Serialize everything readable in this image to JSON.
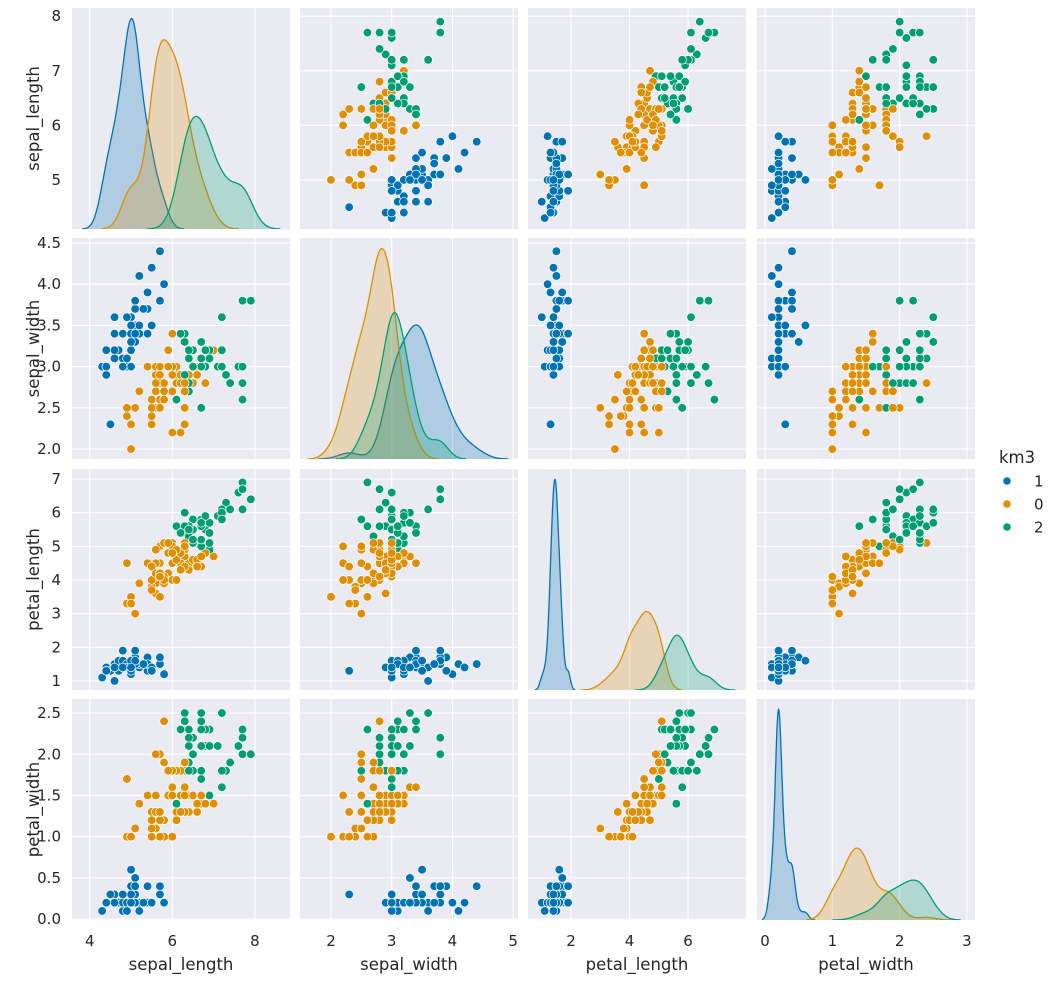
{
  "chart_data": {
    "type": "scatter",
    "subtype": "pairplot",
    "variables": [
      "sepal_length",
      "sepal_width",
      "petal_length",
      "petal_width"
    ],
    "axis_limits": {
      "sepal_length": {
        "x": [
          3.57,
          8.85
        ],
        "y": [
          4.1,
          8.15
        ]
      },
      "sepal_width": {
        "x": [
          1.49,
          5.08
        ],
        "y": [
          1.88,
          4.56
        ]
      },
      "petal_length": {
        "x": [
          0.53,
          7.98
        ],
        "y": [
          0.73,
          7.3
        ]
      },
      "petal_width": {
        "x": [
          -0.12,
          3.12
        ],
        "y": [
          -0.01,
          2.67
        ]
      }
    },
    "x_ticks": {
      "sepal_length": [
        "4",
        "6",
        "8"
      ],
      "sepal_width": [
        "2",
        "3",
        "4",
        "5"
      ],
      "petal_length": [
        "2",
        "4",
        "6"
      ],
      "petal_width": [
        "0",
        "1",
        "2",
        "3"
      ]
    },
    "y_ticks": {
      "sepal_length": [
        "5",
        "6",
        "7",
        "8"
      ],
      "sepal_width": [
        "2.0",
        "2.5",
        "3.0",
        "3.5",
        "4.0",
        "4.5"
      ],
      "petal_length": [
        "1",
        "2",
        "3",
        "4",
        "5",
        "6",
        "7"
      ],
      "petal_width": [
        "0.0",
        "0.5",
        "1.0",
        "1.5",
        "2.0",
        "2.5"
      ]
    },
    "diagonal": "kde",
    "grid": true,
    "background": "#eaeaf2",
    "legend": {
      "title": "km3",
      "placement": "right",
      "order": [
        "1",
        "0",
        "2"
      ]
    },
    "hue_colors": {
      "1": "#0173b2",
      "0": "#de8f05",
      "2": "#029e73"
    },
    "columns": [
      "sepal_length",
      "sepal_width",
      "petal_length",
      "petal_width",
      "km3"
    ],
    "rows": [
      [
        5.1,
        3.5,
        1.4,
        0.2,
        1
      ],
      [
        4.9,
        3.0,
        1.4,
        0.2,
        1
      ],
      [
        4.7,
        3.2,
        1.3,
        0.2,
        1
      ],
      [
        4.6,
        3.1,
        1.5,
        0.2,
        1
      ],
      [
        5.0,
        3.6,
        1.4,
        0.2,
        1
      ],
      [
        5.4,
        3.9,
        1.7,
        0.4,
        1
      ],
      [
        4.6,
        3.4,
        1.4,
        0.3,
        1
      ],
      [
        5.0,
        3.4,
        1.5,
        0.2,
        1
      ],
      [
        4.4,
        2.9,
        1.4,
        0.2,
        1
      ],
      [
        4.9,
        3.1,
        1.5,
        0.1,
        1
      ],
      [
        5.4,
        3.7,
        1.5,
        0.2,
        1
      ],
      [
        4.8,
        3.4,
        1.6,
        0.2,
        1
      ],
      [
        4.8,
        3.0,
        1.4,
        0.1,
        1
      ],
      [
        4.3,
        3.0,
        1.1,
        0.1,
        1
      ],
      [
        5.8,
        4.0,
        1.2,
        0.2,
        1
      ],
      [
        5.7,
        4.4,
        1.5,
        0.4,
        1
      ],
      [
        5.4,
        3.9,
        1.3,
        0.4,
        1
      ],
      [
        5.1,
        3.5,
        1.4,
        0.3,
        1
      ],
      [
        5.7,
        3.8,
        1.7,
        0.3,
        1
      ],
      [
        5.1,
        3.8,
        1.5,
        0.3,
        1
      ],
      [
        5.4,
        3.4,
        1.7,
        0.2,
        1
      ],
      [
        5.1,
        3.7,
        1.5,
        0.4,
        1
      ],
      [
        4.6,
        3.6,
        1.0,
        0.2,
        1
      ],
      [
        5.1,
        3.3,
        1.7,
        0.5,
        1
      ],
      [
        4.8,
        3.4,
        1.9,
        0.2,
        1
      ],
      [
        5.0,
        3.0,
        1.6,
        0.2,
        1
      ],
      [
        5.0,
        3.4,
        1.6,
        0.4,
        1
      ],
      [
        5.2,
        3.5,
        1.5,
        0.2,
        1
      ],
      [
        5.2,
        3.4,
        1.4,
        0.2,
        1
      ],
      [
        4.7,
        3.2,
        1.6,
        0.2,
        1
      ],
      [
        4.8,
        3.1,
        1.6,
        0.2,
        1
      ],
      [
        5.4,
        3.4,
        1.5,
        0.4,
        1
      ],
      [
        5.2,
        4.1,
        1.5,
        0.1,
        1
      ],
      [
        5.5,
        4.2,
        1.4,
        0.2,
        1
      ],
      [
        4.9,
        3.1,
        1.5,
        0.2,
        1
      ],
      [
        5.0,
        3.2,
        1.2,
        0.2,
        1
      ],
      [
        5.5,
        3.5,
        1.3,
        0.2,
        1
      ],
      [
        4.9,
        3.6,
        1.4,
        0.1,
        1
      ],
      [
        4.4,
        3.0,
        1.3,
        0.2,
        1
      ],
      [
        5.1,
        3.4,
        1.5,
        0.2,
        1
      ],
      [
        5.0,
        3.5,
        1.3,
        0.3,
        1
      ],
      [
        4.5,
        2.3,
        1.3,
        0.3,
        1
      ],
      [
        4.4,
        3.2,
        1.3,
        0.2,
        1
      ],
      [
        5.0,
        3.5,
        1.6,
        0.6,
        1
      ],
      [
        5.1,
        3.8,
        1.9,
        0.4,
        1
      ],
      [
        4.8,
        3.0,
        1.4,
        0.3,
        1
      ],
      [
        5.1,
        3.8,
        1.6,
        0.2,
        1
      ],
      [
        4.6,
        3.2,
        1.4,
        0.2,
        1
      ],
      [
        5.3,
        3.7,
        1.5,
        0.2,
        1
      ],
      [
        5.0,
        3.3,
        1.4,
        0.2,
        1
      ],
      [
        7.0,
        3.2,
        4.7,
        1.4,
        0
      ],
      [
        6.4,
        3.2,
        4.5,
        1.5,
        0
      ],
      [
        6.9,
        3.1,
        4.9,
        1.5,
        2
      ],
      [
        5.5,
        2.3,
        4.0,
        1.3,
        0
      ],
      [
        6.5,
        2.8,
        4.6,
        1.5,
        0
      ],
      [
        5.7,
        2.8,
        4.5,
        1.3,
        0
      ],
      [
        6.3,
        3.3,
        4.7,
        1.6,
        0
      ],
      [
        4.9,
        2.4,
        3.3,
        1.0,
        0
      ],
      [
        6.6,
        2.9,
        4.6,
        1.3,
        0
      ],
      [
        5.2,
        2.7,
        3.9,
        1.4,
        0
      ],
      [
        5.0,
        2.0,
        3.5,
        1.0,
        0
      ],
      [
        5.9,
        3.0,
        4.2,
        1.5,
        0
      ],
      [
        6.0,
        2.2,
        4.0,
        1.0,
        0
      ],
      [
        6.1,
        2.9,
        4.7,
        1.4,
        0
      ],
      [
        5.6,
        2.9,
        3.6,
        1.3,
        0
      ],
      [
        6.7,
        3.1,
        4.4,
        1.4,
        0
      ],
      [
        5.6,
        3.0,
        4.5,
        1.5,
        0
      ],
      [
        5.8,
        2.7,
        4.1,
        1.0,
        0
      ],
      [
        6.2,
        2.2,
        4.5,
        1.5,
        0
      ],
      [
        5.6,
        2.5,
        3.9,
        1.1,
        0
      ],
      [
        5.9,
        3.2,
        4.8,
        1.8,
        0
      ],
      [
        6.1,
        2.8,
        4.0,
        1.3,
        0
      ],
      [
        6.3,
        2.5,
        4.9,
        1.5,
        0
      ],
      [
        6.1,
        2.8,
        4.7,
        1.2,
        0
      ],
      [
        6.4,
        2.9,
        4.3,
        1.3,
        0
      ],
      [
        6.6,
        3.0,
        4.4,
        1.4,
        0
      ],
      [
        6.8,
        2.8,
        4.8,
        1.4,
        0
      ],
      [
        6.7,
        3.0,
        5.0,
        1.7,
        2
      ],
      [
        6.0,
        2.9,
        4.5,
        1.5,
        0
      ],
      [
        5.7,
        2.6,
        3.5,
        1.0,
        0
      ],
      [
        5.5,
        2.4,
        3.8,
        1.1,
        0
      ],
      [
        5.5,
        2.4,
        3.7,
        1.0,
        0
      ],
      [
        5.8,
        2.7,
        3.9,
        1.2,
        0
      ],
      [
        6.0,
        2.7,
        5.1,
        1.6,
        0
      ],
      [
        5.4,
        3.0,
        4.5,
        1.5,
        0
      ],
      [
        6.0,
        3.4,
        4.5,
        1.6,
        0
      ],
      [
        6.7,
        3.1,
        4.7,
        1.5,
        0
      ],
      [
        6.3,
        2.3,
        4.4,
        1.3,
        0
      ],
      [
        5.6,
        3.0,
        4.1,
        1.3,
        0
      ],
      [
        5.5,
        2.5,
        4.0,
        1.3,
        0
      ],
      [
        5.5,
        2.6,
        4.4,
        1.2,
        0
      ],
      [
        6.1,
        3.0,
        4.6,
        1.4,
        0
      ],
      [
        5.8,
        2.6,
        4.0,
        1.2,
        0
      ],
      [
        5.0,
        2.3,
        3.3,
        1.0,
        0
      ],
      [
        5.6,
        2.7,
        4.2,
        1.3,
        0
      ],
      [
        5.7,
        3.0,
        4.2,
        1.2,
        0
      ],
      [
        5.7,
        2.9,
        4.2,
        1.3,
        0
      ],
      [
        6.2,
        2.9,
        4.3,
        1.3,
        0
      ],
      [
        5.1,
        2.5,
        3.0,
        1.1,
        0
      ],
      [
        5.7,
        2.8,
        4.1,
        1.3,
        0
      ],
      [
        6.3,
        3.3,
        6.0,
        2.5,
        2
      ],
      [
        5.8,
        2.7,
        5.1,
        1.9,
        0
      ],
      [
        7.1,
        3.0,
        5.9,
        2.1,
        2
      ],
      [
        6.3,
        2.9,
        5.6,
        1.8,
        2
      ],
      [
        6.5,
        3.0,
        5.8,
        2.2,
        2
      ],
      [
        7.6,
        3.0,
        6.6,
        2.1,
        2
      ],
      [
        4.9,
        2.5,
        4.5,
        1.7,
        0
      ],
      [
        7.3,
        2.9,
        6.3,
        1.8,
        2
      ],
      [
        6.7,
        2.5,
        5.8,
        1.8,
        2
      ],
      [
        7.2,
        3.6,
        6.1,
        2.5,
        2
      ],
      [
        6.5,
        3.2,
        5.1,
        2.0,
        2
      ],
      [
        6.4,
        2.7,
        5.3,
        1.9,
        2
      ],
      [
        6.8,
        3.0,
        5.5,
        2.1,
        2
      ],
      [
        5.7,
        2.5,
        5.0,
        2.0,
        0
      ],
      [
        5.8,
        2.8,
        5.1,
        2.4,
        0
      ],
      [
        6.4,
        3.2,
        5.3,
        2.3,
        2
      ],
      [
        6.5,
        3.0,
        5.5,
        1.8,
        2
      ],
      [
        7.7,
        3.8,
        6.7,
        2.2,
        2
      ],
      [
        7.7,
        2.6,
        6.9,
        2.3,
        2
      ],
      [
        6.0,
        2.2,
        5.0,
        1.5,
        0
      ],
      [
        6.9,
        3.2,
        5.7,
        2.3,
        2
      ],
      [
        5.6,
        2.8,
        4.9,
        2.0,
        0
      ],
      [
        7.7,
        2.8,
        6.7,
        2.0,
        2
      ],
      [
        6.3,
        2.7,
        4.9,
        1.8,
        0
      ],
      [
        6.7,
        3.3,
        5.7,
        2.1,
        2
      ],
      [
        7.2,
        3.2,
        6.0,
        1.8,
        2
      ],
      [
        6.2,
        2.8,
        4.8,
        1.8,
        0
      ],
      [
        6.1,
        3.0,
        4.9,
        1.8,
        0
      ],
      [
        6.4,
        2.8,
        5.6,
        2.1,
        2
      ],
      [
        7.2,
        3.0,
        5.8,
        1.6,
        2
      ],
      [
        7.4,
        2.8,
        6.1,
        1.9,
        2
      ],
      [
        7.9,
        3.8,
        6.4,
        2.0,
        2
      ],
      [
        6.4,
        2.8,
        5.6,
        2.2,
        2
      ],
      [
        6.3,
        2.8,
        5.1,
        1.5,
        0
      ],
      [
        6.1,
        2.6,
        5.6,
        1.4,
        2
      ],
      [
        7.7,
        3.0,
        6.1,
        2.3,
        2
      ],
      [
        6.3,
        3.4,
        5.6,
        2.4,
        2
      ],
      [
        6.4,
        3.1,
        5.5,
        1.8,
        2
      ],
      [
        6.0,
        3.0,
        4.8,
        1.8,
        0
      ],
      [
        6.9,
        3.1,
        5.4,
        2.1,
        2
      ],
      [
        6.7,
        3.1,
        5.6,
        2.4,
        2
      ],
      [
        6.9,
        3.1,
        5.1,
        2.3,
        2
      ],
      [
        5.8,
        2.7,
        5.1,
        1.9,
        0
      ],
      [
        6.8,
        3.2,
        5.9,
        2.3,
        2
      ],
      [
        6.7,
        3.3,
        5.7,
        2.5,
        2
      ],
      [
        6.7,
        3.0,
        5.2,
        2.3,
        2
      ],
      [
        6.3,
        2.5,
        5.0,
        1.9,
        0
      ],
      [
        6.5,
        3.0,
        5.2,
        2.0,
        2
      ],
      [
        6.2,
        3.4,
        5.4,
        2.3,
        2
      ],
      [
        5.9,
        3.0,
        5.1,
        1.8,
        0
      ]
    ]
  }
}
